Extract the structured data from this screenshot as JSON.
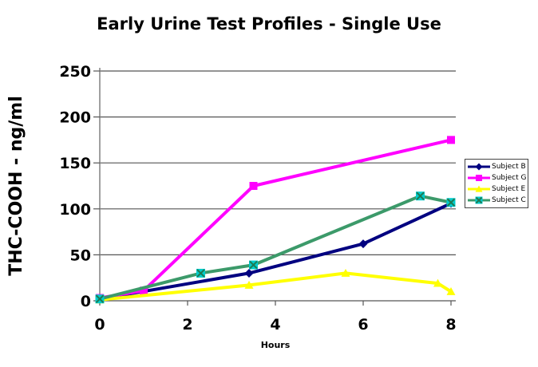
{
  "title": "Early Urine Test Profiles - Single Use",
  "colors": {
    "background": "#FFFFFF",
    "gridline": "#555555",
    "axis": "#808080",
    "tick": "#555555",
    "text": "#000000",
    "legend_border": "#444444"
  },
  "chart_data": {
    "type": "line",
    "title": "Early Urine Test Profiles - Single Use",
    "xlabel": "Hours",
    "ylabel": "THC-COOH - ng/ml",
    "xlim": [
      0,
      8
    ],
    "ylim": [
      0,
      250
    ],
    "xticks": [
      0,
      2,
      4,
      6,
      8
    ],
    "yticks": [
      0,
      50,
      100,
      150,
      200,
      250
    ],
    "grid": "horizontal",
    "legend_position": "right",
    "series": [
      {
        "name": "Subject B",
        "color": "#000080",
        "marker": "diamond",
        "points": [
          [
            0,
            2
          ],
          [
            3.4,
            30
          ],
          [
            6,
            62
          ],
          [
            8,
            106
          ]
        ]
      },
      {
        "name": "Subject G",
        "color": "#FF00FF",
        "marker": "square",
        "points": [
          [
            0,
            3
          ],
          [
            1,
            11
          ],
          [
            3.5,
            125
          ],
          [
            8,
            175
          ]
        ]
      },
      {
        "name": "Subject E",
        "color": "#FFFF00",
        "marker": "triangle",
        "points": [
          [
            0,
            1
          ],
          [
            3.4,
            17
          ],
          [
            5.6,
            30
          ],
          [
            7.7,
            19
          ],
          [
            8,
            10
          ]
        ]
      },
      {
        "name": "Subject C",
        "color": "#3C9A6A",
        "marker": "square-x",
        "marker_fill": "#00CCCC",
        "marker_stroke": "#1E7A52",
        "points": [
          [
            0,
            2
          ],
          [
            2.3,
            30
          ],
          [
            3.5,
            39
          ],
          [
            7.3,
            114
          ],
          [
            8,
            107
          ]
        ]
      }
    ]
  }
}
